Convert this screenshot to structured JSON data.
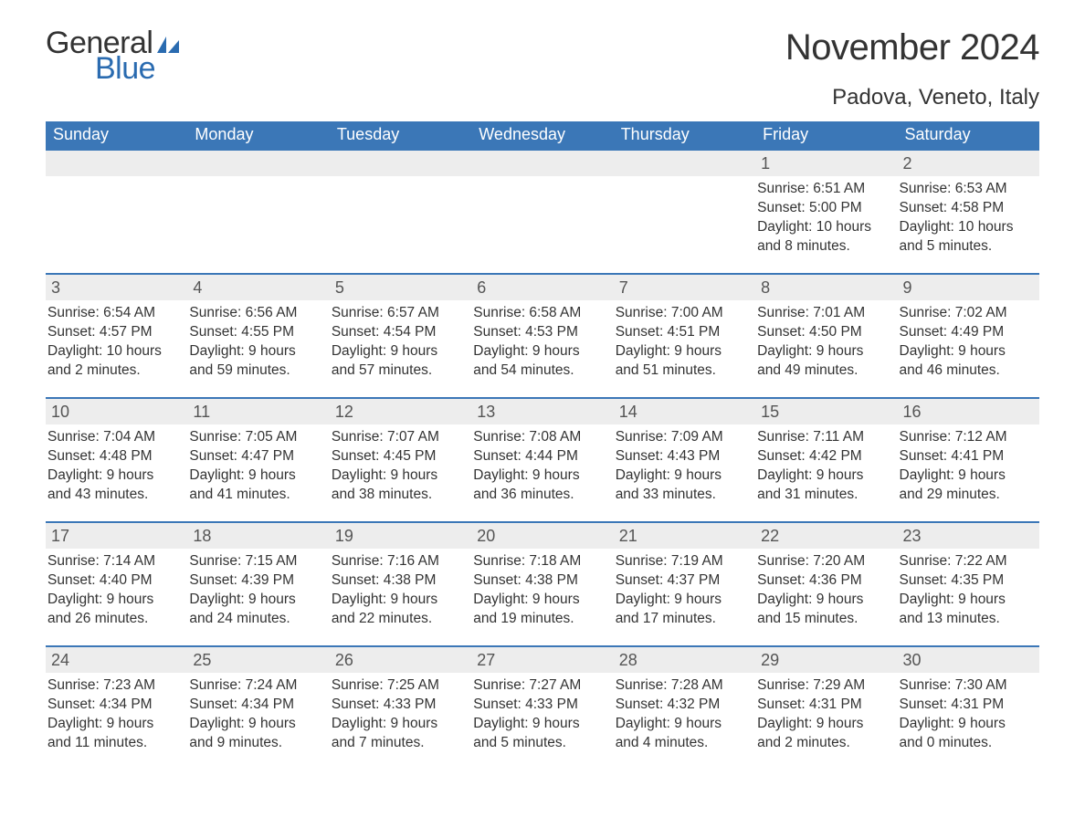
{
  "logo": {
    "word1": "General",
    "word2": "Blue",
    "sail_color": "#2a6bb0"
  },
  "title": "November 2024",
  "location": "Padova, Veneto, Italy",
  "colors": {
    "header_bg": "#3b77b7",
    "header_text": "#ffffff",
    "daynum_bg": "#ededed",
    "daynum_border": "#3b77b7",
    "text": "#333333",
    "page_bg": "#ffffff"
  },
  "weekdays": [
    "Sunday",
    "Monday",
    "Tuesday",
    "Wednesday",
    "Thursday",
    "Friday",
    "Saturday"
  ],
  "labels": {
    "sunrise": "Sunrise:",
    "sunset": "Sunset:",
    "daylight": "Daylight:"
  },
  "weeks": [
    [
      {
        "blank": true
      },
      {
        "blank": true
      },
      {
        "blank": true
      },
      {
        "blank": true
      },
      {
        "blank": true
      },
      {
        "n": "1",
        "sunrise": "6:51 AM",
        "sunset": "5:00 PM",
        "dl1": "10 hours",
        "dl2": "and 8 minutes."
      },
      {
        "n": "2",
        "sunrise": "6:53 AM",
        "sunset": "4:58 PM",
        "dl1": "10 hours",
        "dl2": "and 5 minutes."
      }
    ],
    [
      {
        "n": "3",
        "sunrise": "6:54 AM",
        "sunset": "4:57 PM",
        "dl1": "10 hours",
        "dl2": "and 2 minutes."
      },
      {
        "n": "4",
        "sunrise": "6:56 AM",
        "sunset": "4:55 PM",
        "dl1": "9 hours",
        "dl2": "and 59 minutes."
      },
      {
        "n": "5",
        "sunrise": "6:57 AM",
        "sunset": "4:54 PM",
        "dl1": "9 hours",
        "dl2": "and 57 minutes."
      },
      {
        "n": "6",
        "sunrise": "6:58 AM",
        "sunset": "4:53 PM",
        "dl1": "9 hours",
        "dl2": "and 54 minutes."
      },
      {
        "n": "7",
        "sunrise": "7:00 AM",
        "sunset": "4:51 PM",
        "dl1": "9 hours",
        "dl2": "and 51 minutes."
      },
      {
        "n": "8",
        "sunrise": "7:01 AM",
        "sunset": "4:50 PM",
        "dl1": "9 hours",
        "dl2": "and 49 minutes."
      },
      {
        "n": "9",
        "sunrise": "7:02 AM",
        "sunset": "4:49 PM",
        "dl1": "9 hours",
        "dl2": "and 46 minutes."
      }
    ],
    [
      {
        "n": "10",
        "sunrise": "7:04 AM",
        "sunset": "4:48 PM",
        "dl1": "9 hours",
        "dl2": "and 43 minutes."
      },
      {
        "n": "11",
        "sunrise": "7:05 AM",
        "sunset": "4:47 PM",
        "dl1": "9 hours",
        "dl2": "and 41 minutes."
      },
      {
        "n": "12",
        "sunrise": "7:07 AM",
        "sunset": "4:45 PM",
        "dl1": "9 hours",
        "dl2": "and 38 minutes."
      },
      {
        "n": "13",
        "sunrise": "7:08 AM",
        "sunset": "4:44 PM",
        "dl1": "9 hours",
        "dl2": "and 36 minutes."
      },
      {
        "n": "14",
        "sunrise": "7:09 AM",
        "sunset": "4:43 PM",
        "dl1": "9 hours",
        "dl2": "and 33 minutes."
      },
      {
        "n": "15",
        "sunrise": "7:11 AM",
        "sunset": "4:42 PM",
        "dl1": "9 hours",
        "dl2": "and 31 minutes."
      },
      {
        "n": "16",
        "sunrise": "7:12 AM",
        "sunset": "4:41 PM",
        "dl1": "9 hours",
        "dl2": "and 29 minutes."
      }
    ],
    [
      {
        "n": "17",
        "sunrise": "7:14 AM",
        "sunset": "4:40 PM",
        "dl1": "9 hours",
        "dl2": "and 26 minutes."
      },
      {
        "n": "18",
        "sunrise": "7:15 AM",
        "sunset": "4:39 PM",
        "dl1": "9 hours",
        "dl2": "and 24 minutes."
      },
      {
        "n": "19",
        "sunrise": "7:16 AM",
        "sunset": "4:38 PM",
        "dl1": "9 hours",
        "dl2": "and 22 minutes."
      },
      {
        "n": "20",
        "sunrise": "7:18 AM",
        "sunset": "4:38 PM",
        "dl1": "9 hours",
        "dl2": "and 19 minutes."
      },
      {
        "n": "21",
        "sunrise": "7:19 AM",
        "sunset": "4:37 PM",
        "dl1": "9 hours",
        "dl2": "and 17 minutes."
      },
      {
        "n": "22",
        "sunrise": "7:20 AM",
        "sunset": "4:36 PM",
        "dl1": "9 hours",
        "dl2": "and 15 minutes."
      },
      {
        "n": "23",
        "sunrise": "7:22 AM",
        "sunset": "4:35 PM",
        "dl1": "9 hours",
        "dl2": "and 13 minutes."
      }
    ],
    [
      {
        "n": "24",
        "sunrise": "7:23 AM",
        "sunset": "4:34 PM",
        "dl1": "9 hours",
        "dl2": "and 11 minutes."
      },
      {
        "n": "25",
        "sunrise": "7:24 AM",
        "sunset": "4:34 PM",
        "dl1": "9 hours",
        "dl2": "and 9 minutes."
      },
      {
        "n": "26",
        "sunrise": "7:25 AM",
        "sunset": "4:33 PM",
        "dl1": "9 hours",
        "dl2": "and 7 minutes."
      },
      {
        "n": "27",
        "sunrise": "7:27 AM",
        "sunset": "4:33 PM",
        "dl1": "9 hours",
        "dl2": "and 5 minutes."
      },
      {
        "n": "28",
        "sunrise": "7:28 AM",
        "sunset": "4:32 PM",
        "dl1": "9 hours",
        "dl2": "and 4 minutes."
      },
      {
        "n": "29",
        "sunrise": "7:29 AM",
        "sunset": "4:31 PM",
        "dl1": "9 hours",
        "dl2": "and 2 minutes."
      },
      {
        "n": "30",
        "sunrise": "7:30 AM",
        "sunset": "4:31 PM",
        "dl1": "9 hours",
        "dl2": "and 0 minutes."
      }
    ]
  ]
}
